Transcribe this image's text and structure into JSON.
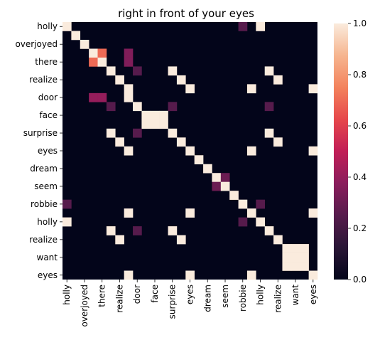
{
  "chart_data": {
    "type": "heatmap",
    "title": "right in front of your eyes",
    "xlabel": "",
    "ylabel": "",
    "tokens": [
      "holly",
      "overjoyed",
      "there",
      "realize",
      "door",
      "face",
      "surprise",
      "eyes",
      "dream",
      "seem",
      "robbie",
      "holly",
      "realize",
      "want",
      "eyes"
    ],
    "row_tokens": [
      "holly",
      "",
      "overjoyed",
      "",
      "there",
      "",
      "realize",
      "",
      "door",
      "",
      "face",
      "",
      "surprise",
      "",
      "eyes",
      "",
      "dream",
      "",
      "seem",
      "",
      "robbie",
      "",
      "holly",
      "",
      "realize",
      "",
      "want",
      "",
      "eyes"
    ],
    "col_tokens": [
      "holly",
      "",
      "overjoyed",
      "",
      "there",
      "",
      "realize",
      "",
      "door",
      "",
      "face",
      "",
      "surprise",
      "",
      "eyes",
      "",
      "dream",
      "",
      "seem",
      "",
      "robbie",
      "",
      "holly",
      "",
      "realize",
      "",
      "want",
      "",
      "eyes"
    ],
    "nonzero_cells": [
      {
        "r": 0,
        "c": 0,
        "v": 1.0
      },
      {
        "r": 0,
        "c": 20,
        "v": 0.25
      },
      {
        "r": 0,
        "c": 22,
        "v": 1.0
      },
      {
        "r": 1,
        "c": 1,
        "v": 1.0
      },
      {
        "r": 2,
        "c": 2,
        "v": 1.0
      },
      {
        "r": 3,
        "c": 3,
        "v": 1.0
      },
      {
        "r": 3,
        "c": 4,
        "v": 0.7
      },
      {
        "r": 3,
        "c": 7,
        "v": 0.35
      },
      {
        "r": 4,
        "c": 3,
        "v": 0.7
      },
      {
        "r": 4,
        "c": 4,
        "v": 1.0
      },
      {
        "r": 4,
        "c": 7,
        "v": 0.35
      },
      {
        "r": 5,
        "c": 5,
        "v": 1.0
      },
      {
        "r": 5,
        "c": 8,
        "v": 0.25
      },
      {
        "r": 5,
        "c": 12,
        "v": 1.0
      },
      {
        "r": 5,
        "c": 23,
        "v": 1.0
      },
      {
        "r": 6,
        "c": 6,
        "v": 1.0
      },
      {
        "r": 6,
        "c": 13,
        "v": 1.0
      },
      {
        "r": 6,
        "c": 24,
        "v": 1.0
      },
      {
        "r": 7,
        "c": 7,
        "v": 1.0
      },
      {
        "r": 7,
        "c": 14,
        "v": 1.0
      },
      {
        "r": 7,
        "c": 21,
        "v": 1.0
      },
      {
        "r": 7,
        "c": 28,
        "v": 1.0
      },
      {
        "r": 8,
        "c": 3,
        "v": 0.4
      },
      {
        "r": 8,
        "c": 4,
        "v": 0.4
      },
      {
        "r": 8,
        "c": 7,
        "v": 1.0
      },
      {
        "r": 9,
        "c": 5,
        "v": 0.25
      },
      {
        "r": 9,
        "c": 8,
        "v": 1.0
      },
      {
        "r": 9,
        "c": 12,
        "v": 0.25
      },
      {
        "r": 9,
        "c": 23,
        "v": 0.25
      },
      {
        "r": 10,
        "c": 9,
        "v": 1.0
      },
      {
        "r": 10,
        "c": 10,
        "v": 1.0
      },
      {
        "r": 10,
        "c": 11,
        "v": 1.0
      },
      {
        "r": 11,
        "c": 9,
        "v": 1.0
      },
      {
        "r": 11,
        "c": 10,
        "v": 1.0
      },
      {
        "r": 11,
        "c": 11,
        "v": 1.0
      },
      {
        "r": 12,
        "c": 5,
        "v": 1.0
      },
      {
        "r": 12,
        "c": 8,
        "v": 0.25
      },
      {
        "r": 12,
        "c": 12,
        "v": 1.0
      },
      {
        "r": 12,
        "c": 23,
        "v": 1.0
      },
      {
        "r": 13,
        "c": 6,
        "v": 1.0
      },
      {
        "r": 13,
        "c": 13,
        "v": 1.0
      },
      {
        "r": 13,
        "c": 24,
        "v": 1.0
      },
      {
        "r": 14,
        "c": 7,
        "v": 1.0
      },
      {
        "r": 14,
        "c": 14,
        "v": 1.0
      },
      {
        "r": 14,
        "c": 21,
        "v": 1.0
      },
      {
        "r": 14,
        "c": 28,
        "v": 1.0
      },
      {
        "r": 15,
        "c": 15,
        "v": 1.0
      },
      {
        "r": 16,
        "c": 16,
        "v": 1.0
      },
      {
        "r": 17,
        "c": 17,
        "v": 1.0
      },
      {
        "r": 17,
        "c": 18,
        "v": 0.3
      },
      {
        "r": 18,
        "c": 17,
        "v": 0.3
      },
      {
        "r": 18,
        "c": 18,
        "v": 1.0
      },
      {
        "r": 19,
        "c": 19,
        "v": 1.0
      },
      {
        "r": 20,
        "c": 0,
        "v": 0.25
      },
      {
        "r": 20,
        "c": 20,
        "v": 1.0
      },
      {
        "r": 20,
        "c": 22,
        "v": 0.25
      },
      {
        "r": 21,
        "c": 7,
        "v": 1.0
      },
      {
        "r": 21,
        "c": 14,
        "v": 1.0
      },
      {
        "r": 21,
        "c": 21,
        "v": 1.0
      },
      {
        "r": 21,
        "c": 28,
        "v": 1.0
      },
      {
        "r": 22,
        "c": 0,
        "v": 1.0
      },
      {
        "r": 22,
        "c": 20,
        "v": 0.25
      },
      {
        "r": 22,
        "c": 22,
        "v": 1.0
      },
      {
        "r": 23,
        "c": 5,
        "v": 1.0
      },
      {
        "r": 23,
        "c": 8,
        "v": 0.25
      },
      {
        "r": 23,
        "c": 12,
        "v": 1.0
      },
      {
        "r": 23,
        "c": 23,
        "v": 1.0
      },
      {
        "r": 24,
        "c": 6,
        "v": 1.0
      },
      {
        "r": 24,
        "c": 13,
        "v": 1.0
      },
      {
        "r": 24,
        "c": 24,
        "v": 1.0
      },
      {
        "r": 25,
        "c": 25,
        "v": 1.0
      },
      {
        "r": 25,
        "c": 26,
        "v": 1.0
      },
      {
        "r": 25,
        "c": 27,
        "v": 1.0
      },
      {
        "r": 26,
        "c": 25,
        "v": 1.0
      },
      {
        "r": 26,
        "c": 26,
        "v": 1.0
      },
      {
        "r": 26,
        "c": 27,
        "v": 1.0
      },
      {
        "r": 27,
        "c": 25,
        "v": 1.0
      },
      {
        "r": 27,
        "c": 26,
        "v": 1.0
      },
      {
        "r": 27,
        "c": 27,
        "v": 1.0
      },
      {
        "r": 28,
        "c": 7,
        "v": 1.0
      },
      {
        "r": 28,
        "c": 14,
        "v": 1.0
      },
      {
        "r": 28,
        "c": 21,
        "v": 1.0
      },
      {
        "r": 28,
        "c": 28,
        "v": 1.0
      }
    ],
    "colorbar": {
      "range": [
        0.0,
        1.0
      ],
      "ticks": [
        0.0,
        0.2,
        0.4,
        0.6,
        0.8,
        1.0
      ],
      "tick_labels": [
        "0.0",
        "0.2",
        "0.4",
        "0.6",
        "0.8",
        "1.0"
      ],
      "colormap": "rocket"
    },
    "grid": false,
    "legend": "colorbar-right"
  }
}
